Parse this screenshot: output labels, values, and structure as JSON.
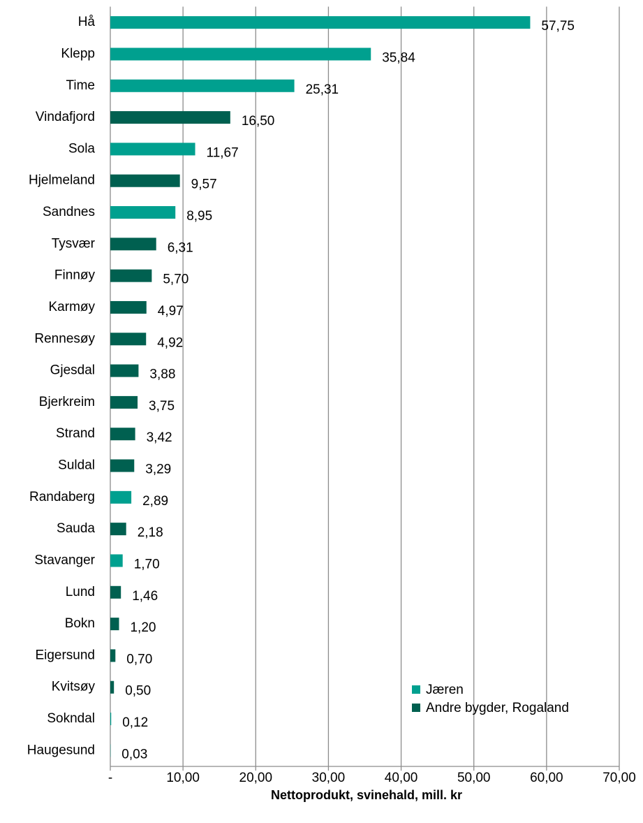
{
  "chart_data": {
    "type": "barh",
    "xlabel": "Nettoprodukt, svinehald,  mill. kr",
    "categories": [
      "Hå",
      "Klepp",
      "Time",
      "Vindafjord",
      "Sola",
      "Hjelmeland",
      "Sandnes",
      "Tysvær",
      "Finnøy",
      "Karmøy",
      "Rennesøy",
      "Gjesdal",
      "Bjerkreim",
      "Strand",
      "Suldal",
      "Randaberg",
      "Sauda",
      "Stavanger",
      "Lund",
      "Bokn",
      "Eigersund",
      "Kvitsøy",
      "Sokndal",
      "Haugesund"
    ],
    "series": [
      {
        "name": "Jæren",
        "color": "#00a08f",
        "values": [
          57.75,
          35.84,
          25.31,
          null,
          11.67,
          null,
          8.95,
          null,
          null,
          null,
          null,
          null,
          null,
          null,
          null,
          2.89,
          null,
          1.7,
          null,
          null,
          null,
          null,
          0.12,
          0.03
        ],
        "value_labels": [
          "57,75",
          "35,84",
          "25,31",
          null,
          "11,67",
          null,
          "8,95",
          null,
          null,
          null,
          null,
          null,
          null,
          null,
          null,
          "2,89",
          null,
          "1,70",
          null,
          null,
          null,
          null,
          "0,12",
          "0,03"
        ]
      },
      {
        "name": "Andre bygder, Rogaland",
        "color": "#006050",
        "values": [
          null,
          null,
          null,
          16.5,
          null,
          9.57,
          null,
          6.31,
          5.7,
          4.97,
          4.92,
          3.88,
          3.75,
          3.42,
          3.29,
          null,
          2.18,
          null,
          1.46,
          1.2,
          0.7,
          0.5,
          null,
          null
        ],
        "value_labels": [
          null,
          null,
          null,
          "16,50",
          null,
          "9,57",
          null,
          "6,31",
          "5,70",
          "4,97",
          "4,92",
          "3,88",
          "3,75",
          "3,42",
          "3,29",
          null,
          "2,18",
          null,
          "1,46",
          "1,20",
          "0,70",
          "0,50",
          null,
          null
        ]
      }
    ],
    "xlim": [
      0,
      70
    ],
    "xticks": [
      {
        "value": 0,
        "label": "-"
      },
      {
        "value": 10,
        "label": "10,00"
      },
      {
        "value": 20,
        "label": "20,00"
      },
      {
        "value": 30,
        "label": "30,00"
      },
      {
        "value": 40,
        "label": "40,00"
      },
      {
        "value": 50,
        "label": "50,00"
      },
      {
        "value": 60,
        "label": "60,00"
      },
      {
        "value": 70,
        "label": "70,00"
      }
    ],
    "grid": true,
    "legend": "lower right"
  }
}
